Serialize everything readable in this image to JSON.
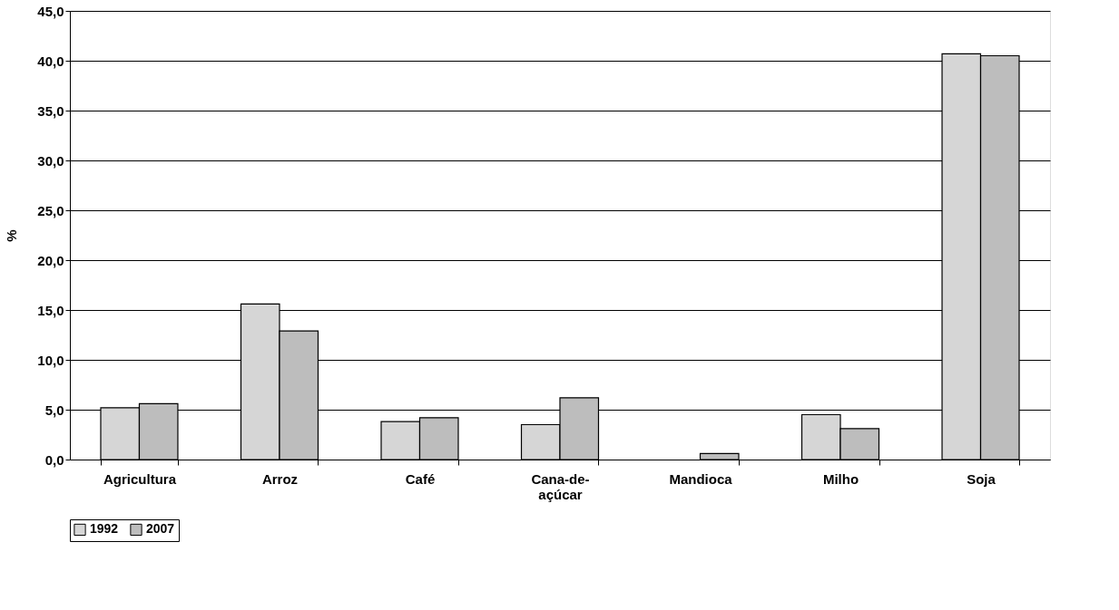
{
  "chart_data": {
    "type": "bar",
    "ylabel": "%",
    "categories": [
      "Agricultura",
      "Arroz",
      "Café",
      "Cana-de-açúcar",
      "Mandioca",
      "Milho",
      "Soja"
    ],
    "series": [
      {
        "name": "1992",
        "color": "#d6d6d6",
        "values": [
          5.2,
          15.6,
          3.8,
          3.5,
          null,
          4.5,
          40.7
        ]
      },
      {
        "name": "2007",
        "color": "#bdbdbd",
        "values": [
          5.6,
          12.9,
          4.2,
          6.2,
          0.6,
          3.1,
          40.5
        ]
      }
    ],
    "ylim": [
      0,
      45
    ],
    "yticks": [
      {
        "value": 0,
        "label": "0,0"
      },
      {
        "value": 5,
        "label": "5,0"
      },
      {
        "value": 10,
        "label": "10,0"
      },
      {
        "value": 15,
        "label": "15,0"
      },
      {
        "value": 20,
        "label": "20,0"
      },
      {
        "value": 25,
        "label": "25,0"
      },
      {
        "value": 30,
        "label": "30,0"
      },
      {
        "value": 35,
        "label": "35,0"
      },
      {
        "value": 40,
        "label": "40,0"
      },
      {
        "value": 45,
        "label": "45,0"
      }
    ],
    "grid": "y",
    "legend": "bottom"
  }
}
